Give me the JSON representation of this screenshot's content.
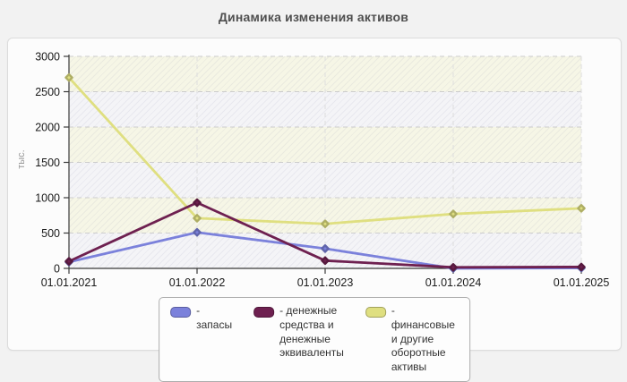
{
  "page": {
    "title": "Динамика изменения активов"
  },
  "chart_data": {
    "type": "line",
    "title": "Динамика изменения активов",
    "ylabel": "тыс.",
    "xlabel": "",
    "ylim": [
      0,
      3000
    ],
    "ytick_step": 500,
    "grid": true,
    "legend_position": "bottom",
    "categories": [
      "01.01.2021",
      "01.01.2022",
      "01.01.2023",
      "01.01.2024",
      "01.01.2025"
    ],
    "series": [
      {
        "name": "запасы",
        "color": "#7b81db",
        "values": [
          90,
          510,
          280,
          0,
          5
        ]
      },
      {
        "name": "денежные средства и денежные эквиваленты",
        "color": "#6e2050",
        "values": [
          100,
          930,
          110,
          15,
          20
        ]
      },
      {
        "name": "финансовые и другие оборотные активы",
        "color": "#dfdf80",
        "values": [
          2700,
          710,
          630,
          770,
          850
        ]
      }
    ],
    "draw_order": [
      2,
      0,
      1
    ]
  },
  "legend": {
    "items": [
      {
        "label": "- запасы"
      },
      {
        "label": "- денежные средства и\nденежные эквиваленты"
      },
      {
        "label": "- финансовые и другие\nоборотные активы"
      }
    ]
  },
  "colors": {
    "page_bg": "#f2f2f2",
    "card_bg": "#fcfcfc",
    "title": "#4f4f4f",
    "band_yellow": "#f6f6e6",
    "band_gray": "#f4f4f7",
    "gridline": "#cccccc",
    "vgridline": "#dddddd",
    "axis": "#3a3a3a",
    "tick_text": "#1a1a1a",
    "ylabel_text": "#999999"
  }
}
